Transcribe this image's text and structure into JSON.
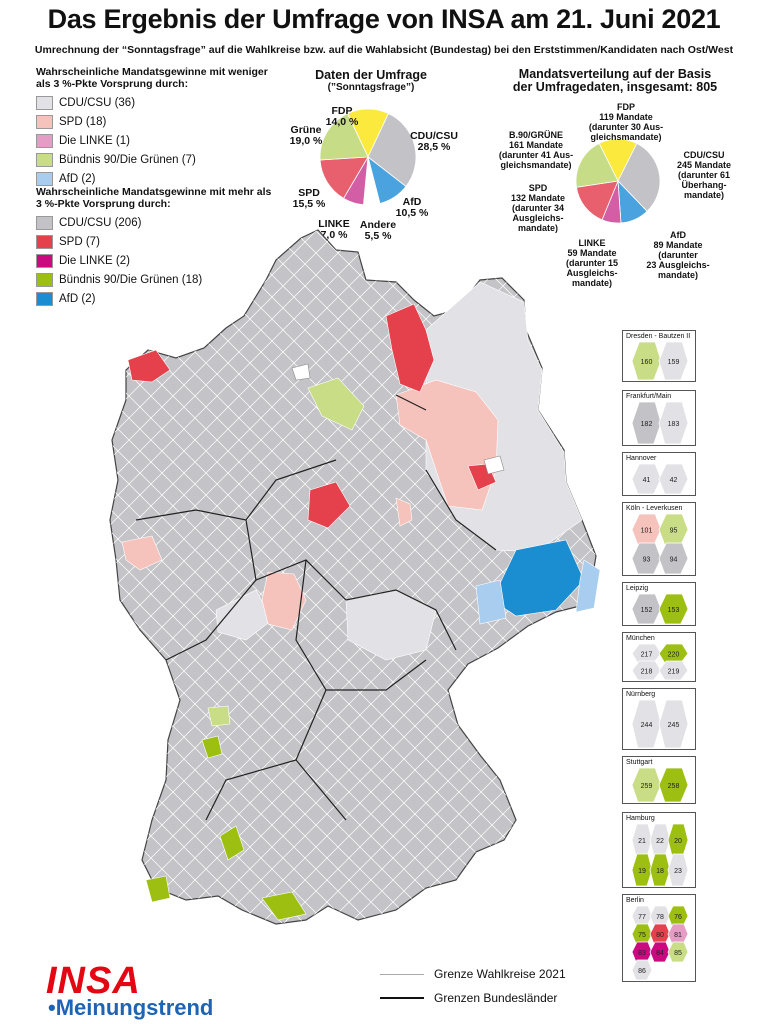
{
  "title": "Das Ergebnis der Umfrage von INSA am 21. Juni 2021",
  "subtitle": "Umrechnung der “Sonntagsfrage” auf die Wahlkreise bzw. auf die Wahlabsicht (Bundestag) bei den Erststimmen/Kandidaten nach Ost/West",
  "colors": {
    "cdu_light": "#e2e2e6",
    "spd_light": "#f6c2bc",
    "linke_light": "#e59dc6",
    "gruene_light": "#c8dd86",
    "afd_light": "#a9cdee",
    "cdu_dark": "#c3c3c7",
    "spd_dark": "#e5414c",
    "linke_dark": "#cc0a80",
    "gruene_dark": "#9cbf12",
    "afd_dark": "#1a8ed1",
    "fdp": "#fce93e",
    "andere": "#ffffff"
  },
  "legend": {
    "weak_heading": "Wahrscheinliche Mandatsgewinne mit weniger als 3 %-Pkte Vorsprung durch:",
    "weak": [
      {
        "label": "CDU/CSU (36)",
        "color": "#e2e2e6"
      },
      {
        "label": "SPD (18)",
        "color": "#f6c2bc"
      },
      {
        "label": "Die LINKE (1)",
        "color": "#e59dc6"
      },
      {
        "label": "Bündnis 90/Die Grünen (7)",
        "color": "#c8dd86"
      },
      {
        "label": "AfD (2)",
        "color": "#a9cdee"
      }
    ],
    "strong_heading": "Wahrscheinliche Mandatsgewinne mit mehr als 3 %-Pkte Vorsprung durch:",
    "strong": [
      {
        "label": "CDU/CSU (206)",
        "color": "#c3c3c7"
      },
      {
        "label": "SPD (7)",
        "color": "#e5414c"
      },
      {
        "label": "Die LINKE (2)",
        "color": "#cc0a80"
      },
      {
        "label": "Bündnis 90/Die Grünen (18)",
        "color": "#9cbf12"
      },
      {
        "label": "AfD (2)",
        "color": "#1a8ed1"
      }
    ]
  },
  "poll": {
    "title": "Daten der Umfrage",
    "subtitle": "(”Sonntagsfrage”)",
    "labels": {
      "fdp": "FDP\n14,0 %",
      "cdu": "CDU/CSU\n28,5 %",
      "afd": "AfD\n10,5 %",
      "andere": "Andere\n5,5 %",
      "linke": "LINKE\n7,0 %",
      "spd": "SPD\n15,5 %",
      "gruene": "Grüne\n19,0 %"
    }
  },
  "seats": {
    "title": "Mandatsverteilung auf der Basis\nder Umfragedaten, insgesamt: 805",
    "labels": {
      "fdp": "FDP\n119 Mandate\n(darunter 30 Aus-\ngleichsmandate)",
      "cdu": "CDU/CSU\n245 Mandate\n(darunter 61\nÜberhang-\nmandate)",
      "afd": "AfD\n89 Mandate\n(darunter\n23 Ausgleichs-\nmandate)",
      "linke": "LINKE\n59 Mandate\n(darunter 15\nAusgleichs-\nmandate)",
      "spd": "SPD\n132 Mandate\n(darunter 34\nAusgleichs-\nmandate)",
      "gruene": "B.90/GRÜNE\n161 Mandate\n(darunter 41 Aus-\ngleichsmandate)"
    }
  },
  "chart_data": [
    {
      "type": "pie",
      "title": "Daten der Umfrage",
      "subtitle": "(”Sonntagsfrage”)",
      "categories": [
        "FDP",
        "CDU/CSU",
        "AfD",
        "Andere",
        "LINKE",
        "SPD",
        "Grüne"
      ],
      "values": [
        14.0,
        28.5,
        10.5,
        5.5,
        7.0,
        15.5,
        19.0
      ],
      "colors": [
        "#fce93e",
        "#c3c3c7",
        "#4aa3df",
        "#ffffff",
        "#d45ea6",
        "#e8606e",
        "#c6dc86"
      ]
    },
    {
      "type": "pie",
      "title": "Mandatsverteilung auf der Basis der Umfragedaten, insgesamt: 805",
      "categories": [
        "FDP",
        "CDU/CSU",
        "AfD",
        "LINKE",
        "SPD",
        "B.90/GRÜNE"
      ],
      "values": [
        119,
        245,
        89,
        59,
        132,
        161
      ],
      "colors": [
        "#fce93e",
        "#c3c3c7",
        "#4aa3df",
        "#d45ea6",
        "#e8606e",
        "#c6dc86"
      ]
    }
  ],
  "insets": [
    {
      "label": "Dresden - Bautzen II",
      "numbers": [
        "160",
        "159"
      ]
    },
    {
      "label": "Frankfurt/Main",
      "numbers": [
        "182",
        "183"
      ]
    },
    {
      "label": "Hannover",
      "numbers": [
        "41",
        "42"
      ]
    },
    {
      "label": "Köln - Leverkusen",
      "numbers": [
        "101",
        "95",
        "93",
        "94"
      ]
    },
    {
      "label": "Leipzig",
      "numbers": [
        "152",
        "153"
      ]
    },
    {
      "label": "München",
      "numbers": [
        "217",
        "220",
        "218",
        "219"
      ]
    },
    {
      "label": "Nürnberg",
      "numbers": [
        "244",
        "245"
      ]
    },
    {
      "label": "Stuttgart",
      "numbers": [
        "259",
        "258"
      ]
    },
    {
      "label": "Hamburg",
      "numbers": [
        "21",
        "22",
        "20",
        "19",
        "18",
        "23"
      ]
    },
    {
      "label": "Berlin",
      "numbers": [
        "77",
        "78",
        "76",
        "75",
        "80",
        "81",
        "83",
        "84",
        "85",
        "86"
      ]
    }
  ],
  "map_legend": {
    "constituency_border": "Grenze Wahlkreise 2021",
    "state_border": "Grenzen Bundesländer"
  },
  "logo": {
    "brand": "INSA",
    "sub": "•Meinungstrend"
  }
}
